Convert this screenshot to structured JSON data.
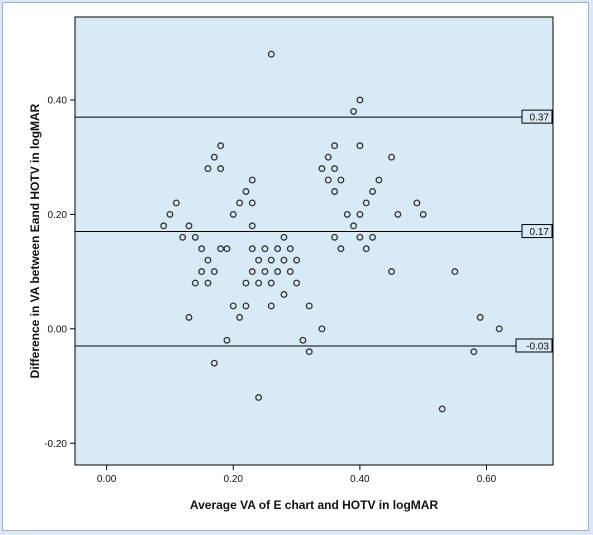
{
  "chart_data": {
    "type": "scatter",
    "title": "",
    "xlabel": "Average VA of E chart and HOTV in logMAR",
    "ylabel": "Difference in VA between Eand HOTV in logMAR",
    "xlim": [
      -0.05,
      0.705
    ],
    "ylim": [
      -0.238,
      0.545
    ],
    "xticks": [
      0.0,
      0.2,
      0.4,
      0.6
    ],
    "xtick_labels": [
      "0.00",
      "0.20",
      "0.40",
      "0.60"
    ],
    "yticks": [
      -0.2,
      0.0,
      0.2,
      0.4
    ],
    "ytick_labels": [
      "-0.20",
      "0.00",
      "0.20",
      "0.40"
    ],
    "grid": false,
    "legend": "none",
    "colors": {
      "plot_background": "#d8eaf6",
      "marker_stroke": "#333333",
      "reference_line": "#000000",
      "axis_text": "#111111"
    },
    "reference_lines": [
      {
        "y": 0.37,
        "label": "0.37"
      },
      {
        "y": 0.17,
        "label": "0.17"
      },
      {
        "y": -0.03,
        "label": "-0.03"
      }
    ],
    "points": [
      [
        0.09,
        0.18
      ],
      [
        0.1,
        0.2
      ],
      [
        0.11,
        0.22
      ],
      [
        0.12,
        0.16
      ],
      [
        0.13,
        0.18
      ],
      [
        0.13,
        0.02
      ],
      [
        0.14,
        0.16
      ],
      [
        0.14,
        0.08
      ],
      [
        0.15,
        0.14
      ],
      [
        0.15,
        0.1
      ],
      [
        0.16,
        0.12
      ],
      [
        0.16,
        0.08
      ],
      [
        0.16,
        0.28
      ],
      [
        0.17,
        0.3
      ],
      [
        0.17,
        0.1
      ],
      [
        0.17,
        -0.06
      ],
      [
        0.18,
        0.32
      ],
      [
        0.18,
        0.28
      ],
      [
        0.18,
        0.14
      ],
      [
        0.19,
        -0.02
      ],
      [
        0.19,
        0.14
      ],
      [
        0.2,
        0.2
      ],
      [
        0.2,
        0.04
      ],
      [
        0.21,
        0.02
      ],
      [
        0.21,
        0.22
      ],
      [
        0.22,
        0.24
      ],
      [
        0.22,
        0.08
      ],
      [
        0.22,
        0.04
      ],
      [
        0.23,
        0.26
      ],
      [
        0.23,
        0.22
      ],
      [
        0.23,
        0.18
      ],
      [
        0.23,
        0.14
      ],
      [
        0.23,
        0.1
      ],
      [
        0.24,
        0.12
      ],
      [
        0.24,
        0.08
      ],
      [
        0.24,
        -0.12
      ],
      [
        0.25,
        0.14
      ],
      [
        0.25,
        0.1
      ],
      [
        0.26,
        0.48
      ],
      [
        0.26,
        0.12
      ],
      [
        0.26,
        0.08
      ],
      [
        0.26,
        0.04
      ],
      [
        0.27,
        0.14
      ],
      [
        0.27,
        0.1
      ],
      [
        0.28,
        0.16
      ],
      [
        0.28,
        0.12
      ],
      [
        0.28,
        0.06
      ],
      [
        0.29,
        0.14
      ],
      [
        0.29,
        0.1
      ],
      [
        0.3,
        0.12
      ],
      [
        0.3,
        0.08
      ],
      [
        0.31,
        -0.02
      ],
      [
        0.32,
        0.04
      ],
      [
        0.32,
        -0.04
      ],
      [
        0.34,
        0.28
      ],
      [
        0.34,
        0.0
      ],
      [
        0.35,
        0.3
      ],
      [
        0.35,
        0.26
      ],
      [
        0.36,
        0.32
      ],
      [
        0.36,
        0.28
      ],
      [
        0.36,
        0.24
      ],
      [
        0.36,
        0.16
      ],
      [
        0.37,
        0.26
      ],
      [
        0.37,
        0.14
      ],
      [
        0.38,
        0.2
      ],
      [
        0.39,
        0.38
      ],
      [
        0.39,
        0.18
      ],
      [
        0.4,
        0.4
      ],
      [
        0.4,
        0.32
      ],
      [
        0.4,
        0.2
      ],
      [
        0.4,
        0.16
      ],
      [
        0.41,
        0.22
      ],
      [
        0.41,
        0.14
      ],
      [
        0.42,
        0.24
      ],
      [
        0.42,
        0.16
      ],
      [
        0.43,
        0.26
      ],
      [
        0.45,
        0.3
      ],
      [
        0.45,
        0.1
      ],
      [
        0.46,
        0.2
      ],
      [
        0.49,
        0.22
      ],
      [
        0.5,
        0.2
      ],
      [
        0.53,
        -0.14
      ],
      [
        0.55,
        0.1
      ],
      [
        0.58,
        -0.04
      ],
      [
        0.59,
        0.02
      ],
      [
        0.62,
        0.0
      ]
    ]
  }
}
